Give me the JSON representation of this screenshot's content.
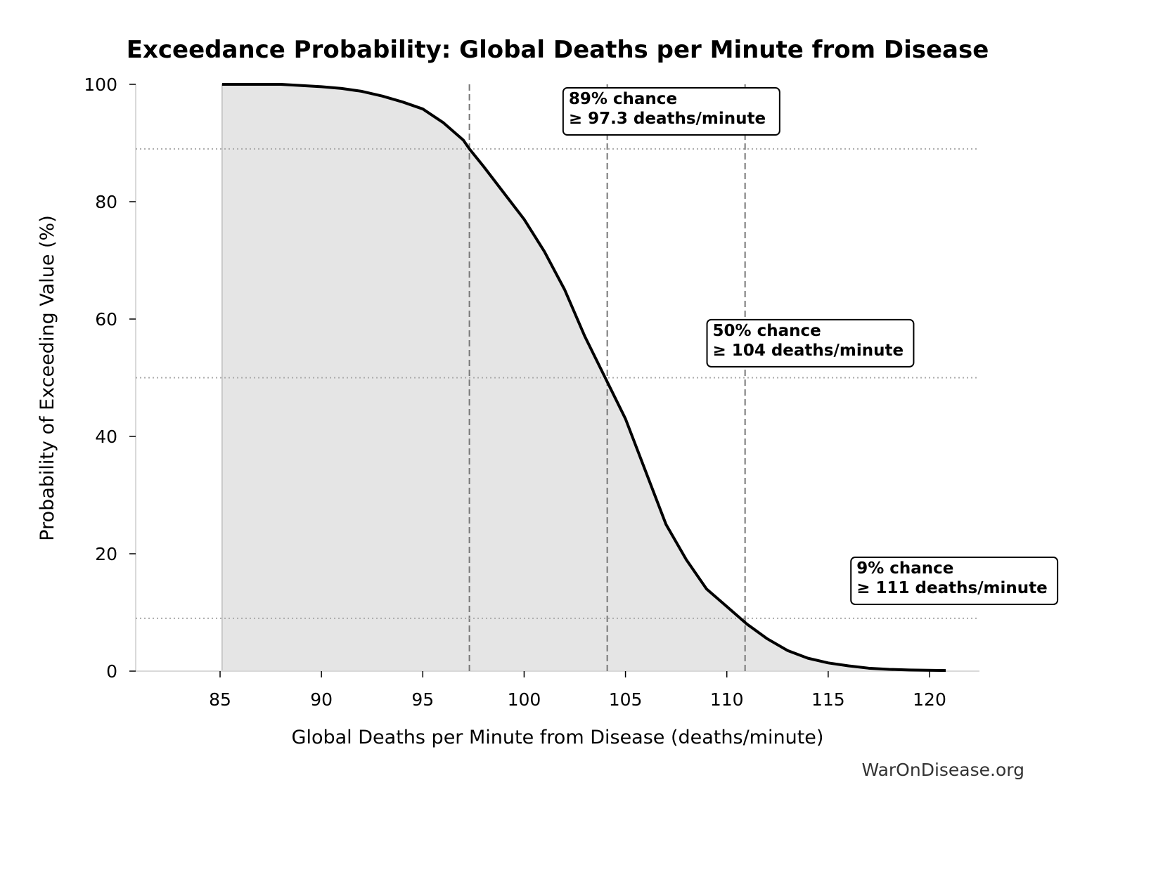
{
  "chart_data": {
    "type": "area",
    "title": "Exceedance Probability: Global Deaths per Minute from Disease",
    "xlabel": "Global Deaths per Minute from Disease (deaths/minute)",
    "ylabel": "Probability of Exceeding Value (%)",
    "xlim": [
      81,
      122.5
    ],
    "ylim": [
      0,
      100
    ],
    "xticks": [
      85,
      90,
      95,
      100,
      105,
      110,
      115,
      120
    ],
    "yticks": [
      0,
      20,
      40,
      60,
      80,
      100
    ],
    "grid": false,
    "x": [
      85.1,
      88,
      90,
      91,
      92,
      93,
      94,
      95,
      96,
      97,
      97.3,
      98,
      99,
      100,
      101,
      102,
      103,
      104,
      105,
      106,
      107,
      108,
      109,
      110,
      111,
      112,
      113,
      114,
      115,
      116,
      117,
      118,
      119,
      120.8
    ],
    "y": [
      100,
      100,
      99.6,
      99.3,
      98.8,
      98,
      97,
      95.8,
      93.5,
      90.5,
      89,
      86,
      81.5,
      77,
      71.5,
      65,
      57,
      50,
      43,
      34,
      25,
      19,
      14,
      11,
      8,
      5.5,
      3.5,
      2.2,
      1.4,
      0.9,
      0.5,
      0.3,
      0.2,
      0.1
    ],
    "line_color": "#000000",
    "fill_color": "#e5e5e5",
    "thresholds": [
      {
        "x": 97.3,
        "y": 89,
        "label_line1": "89% chance",
        "label_line2": "≥ 97.3 deaths/minute",
        "label_pos": [
          102.2,
          97
        ]
      },
      {
        "x": 104.1,
        "y": 50,
        "label_line1": "50% chance",
        "label_line2": "≥ 104 deaths/minute",
        "label_pos": [
          109.3,
          57.5
        ]
      },
      {
        "x": 110.9,
        "y": 9,
        "label_line1": "9% chance",
        "label_line2": "≥ 111 deaths/minute",
        "label_pos": [
          116.4,
          17
        ]
      }
    ],
    "watermark": "WarOnDisease.org"
  }
}
